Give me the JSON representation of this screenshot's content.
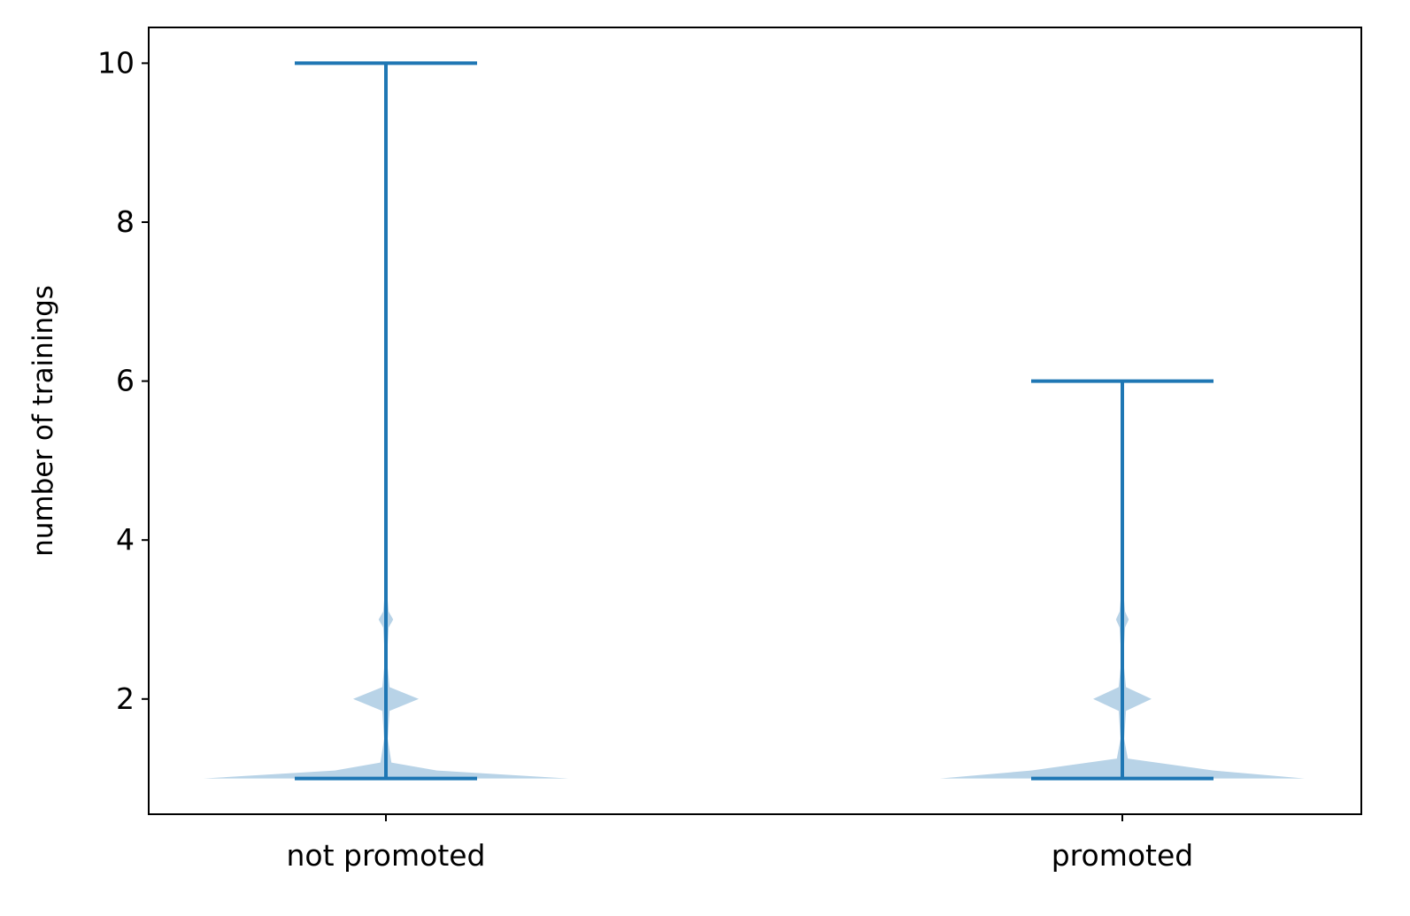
{
  "chart_data": {
    "type": "violin",
    "title": "",
    "xlabel": "",
    "ylabel": "number of trainings",
    "categories": [
      "not promoted",
      "promoted"
    ],
    "ylim": [
      0.55,
      10.45
    ],
    "yticks": [
      2,
      4,
      6,
      8,
      10
    ],
    "ytick_labels": [
      "2",
      "4",
      "6",
      "8",
      "10"
    ],
    "grid": false,
    "colors": {
      "line": "#1f77b4",
      "body": "#b8d3e7",
      "axes": "#000000"
    },
    "violins": [
      {
        "category": "not promoted",
        "min": 1,
        "max": 10,
        "density": [
          {
            "y": 1.0,
            "w": 1.0
          },
          {
            "y": 1.1,
            "w": 0.28
          },
          {
            "y": 1.2,
            "w": 0.03
          },
          {
            "y": 1.5,
            "w": 0.01
          },
          {
            "y": 1.85,
            "w": 0.02
          },
          {
            "y": 2.0,
            "w": 0.18
          },
          {
            "y": 2.15,
            "w": 0.02
          },
          {
            "y": 2.5,
            "w": 0.005
          },
          {
            "y": 2.9,
            "w": 0.015
          },
          {
            "y": 3.0,
            "w": 0.04
          },
          {
            "y": 3.1,
            "w": 0.015
          },
          {
            "y": 3.5,
            "w": 0.0
          }
        ]
      },
      {
        "category": "promoted",
        "min": 1,
        "max": 6,
        "density": [
          {
            "y": 1.0,
            "w": 1.0
          },
          {
            "y": 1.1,
            "w": 0.5
          },
          {
            "y": 1.25,
            "w": 0.03
          },
          {
            "y": 1.5,
            "w": 0.01
          },
          {
            "y": 1.85,
            "w": 0.02
          },
          {
            "y": 2.0,
            "w": 0.16
          },
          {
            "y": 2.15,
            "w": 0.02
          },
          {
            "y": 2.5,
            "w": 0.005
          },
          {
            "y": 2.9,
            "w": 0.015
          },
          {
            "y": 3.0,
            "w": 0.035
          },
          {
            "y": 3.1,
            "w": 0.015
          },
          {
            "y": 3.5,
            "w": 0.0
          }
        ]
      }
    ]
  }
}
